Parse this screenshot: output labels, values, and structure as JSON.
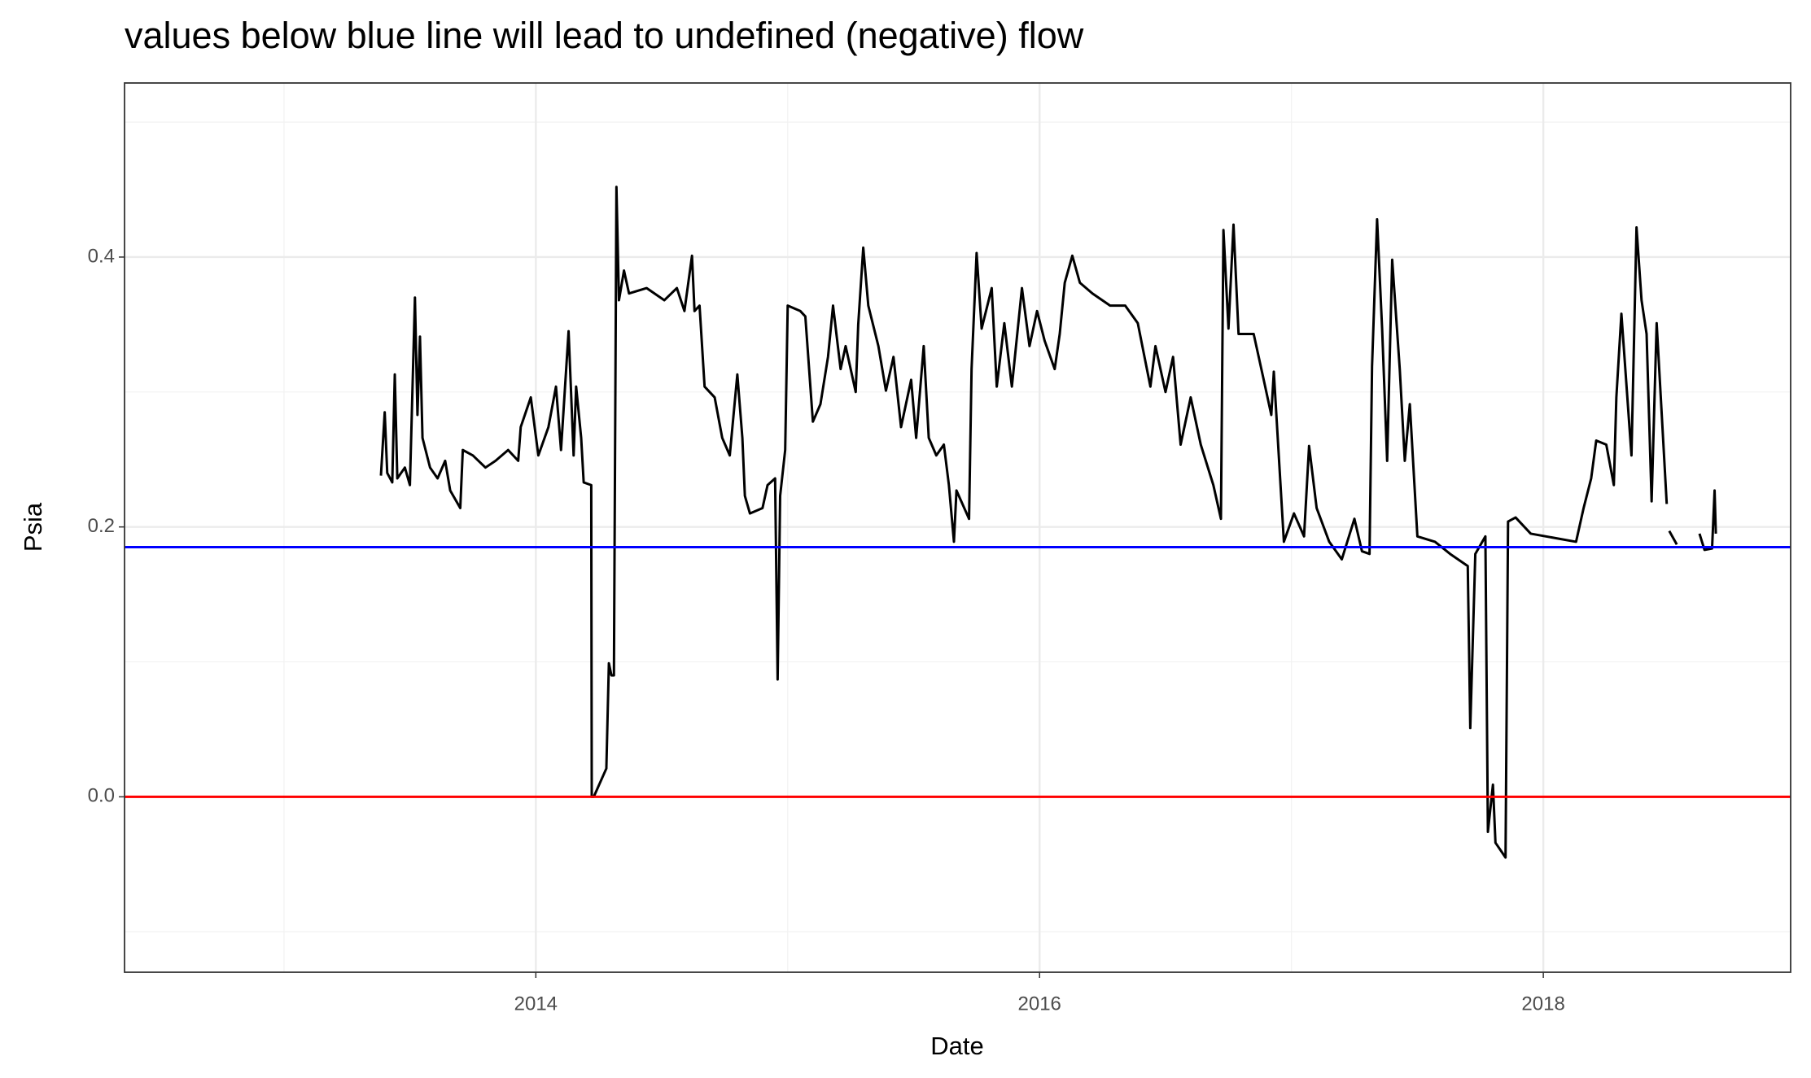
{
  "chart_data": {
    "type": "line",
    "title": "values below blue line will lead to undefined (negative) flow",
    "xlabel": "Date",
    "ylabel": "Psia",
    "xlim": [
      2012.367,
      2018.982
    ],
    "ylim": [
      -0.13,
      0.529
    ],
    "xticks": [
      2014,
      2016,
      2018
    ],
    "yticks": [
      {
        "value": 0,
        "label": "0.0"
      },
      {
        "value": 0.2,
        "label": "0.2"
      },
      {
        "value": 0.4,
        "label": "0.4"
      }
    ],
    "xminor": [
      2013,
      2015,
      2017
    ],
    "yminor": [
      -0.1,
      0.1,
      0.3,
      0.5
    ],
    "grid": true,
    "color": "#000000",
    "hlines": [
      {
        "value": 0,
        "color": "#ff0000"
      },
      {
        "value": 0.185,
        "color": "#0000ff"
      }
    ],
    "x": [
      2013.385,
      2013.4,
      2013.41,
      2013.43,
      2013.44,
      2013.45,
      2013.48,
      2013.5,
      2013.52,
      2013.53,
      2013.54,
      2013.55,
      2013.58,
      2013.61,
      2013.64,
      2013.66,
      2013.7,
      2013.71,
      2013.75,
      2013.8,
      2013.84,
      2013.89,
      2013.93,
      2013.94,
      2013.98,
      2014.01,
      2014.05,
      2014.08,
      2014.1,
      2014.13,
      2014.15,
      2014.16,
      2014.18,
      2014.19,
      2014.22,
      2014.222,
      2014.23,
      2014.28,
      2014.29,
      2014.3,
      2014.31,
      2014.32,
      2014.33,
      2014.35,
      2014.37,
      2014.44,
      2014.51,
      2014.56,
      2014.59,
      2014.62,
      2014.63,
      2014.65,
      2014.67,
      2014.71,
      2014.74,
      2014.77,
      2014.8,
      2014.82,
      2014.83,
      2014.85,
      2014.9,
      2014.92,
      2014.95,
      2014.96,
      2014.97,
      2014.99,
      2015.0,
      2015.05,
      2015.07,
      2015.1,
      2015.13,
      2015.16,
      2015.18,
      2015.21,
      2015.23,
      2015.27,
      2015.28,
      2015.3,
      2015.32,
      2015.36,
      2015.39,
      2015.42,
      2015.45,
      2015.49,
      2015.51,
      2015.54,
      2015.56,
      2015.59,
      2015.62,
      2015.64,
      2015.66,
      2015.67,
      2015.72,
      2015.73,
      2015.75,
      2015.77,
      2015.81,
      2015.83,
      2015.86,
      2015.89,
      2015.93,
      2015.96,
      2015.99,
      2016.02,
      2016.06,
      2016.08,
      2016.1,
      2016.13,
      2016.16,
      2016.21,
      2016.28,
      2016.34,
      2016.39,
      2016.44,
      2016.46,
      2016.5,
      2016.53,
      2016.56,
      2016.6,
      2016.64,
      2016.69,
      2016.72,
      2016.73,
      2016.75,
      2016.77,
      2016.79,
      2016.85,
      2016.89,
      2016.92,
      2016.93,
      2016.97,
      2017.01,
      2017.05,
      2017.07,
      2017.1,
      2017.15,
      2017.2,
      2017.25,
      2017.28,
      2017.31,
      2017.32,
      2017.34,
      2017.36,
      2017.38,
      2017.4,
      2017.43,
      2017.45,
      2017.47,
      2017.5,
      2017.57,
      2017.63,
      2017.7,
      2017.71,
      2017.73,
      2017.77,
      2017.78,
      2017.8,
      2017.81,
      2017.85,
      2017.86,
      2017.89,
      2017.95,
      2018.13,
      2018.16,
      2018.19,
      2018.21,
      2018.25,
      2018.28,
      2018.29,
      2018.31,
      2018.35,
      2018.37,
      2018.39,
      2018.41,
      2018.43,
      2018.45,
      2018.49,
      2018.495,
      2018.5,
      2018.53,
      2018.58,
      2018.62,
      2018.64,
      2018.67,
      2018.68,
      2018.685
    ],
    "values": [
      0.238,
      0.285,
      0.24,
      0.233,
      0.313,
      0.236,
      0.244,
      0.231,
      0.37,
      0.283,
      0.341,
      0.266,
      0.244,
      0.236,
      0.249,
      0.227,
      0.214,
      0.257,
      0.253,
      0.244,
      0.249,
      0.257,
      0.249,
      0.274,
      0.296,
      0.253,
      0.274,
      0.304,
      0.257,
      0.345,
      0.253,
      0.304,
      0.266,
      0.233,
      0.231,
      0.0,
      0.0,
      0.021,
      0.099,
      0.09,
      0.09,
      0.452,
      0.368,
      0.39,
      0.373,
      0.377,
      0.368,
      0.377,
      0.36,
      0.401,
      0.36,
      0.364,
      0.304,
      0.296,
      0.266,
      0.253,
      0.313,
      0.266,
      0.223,
      0.21,
      0.214,
      0.231,
      0.236,
      0.087,
      0.223,
      0.257,
      0.364,
      0.36,
      0.356,
      0.278,
      0.291,
      0.326,
      0.364,
      0.317,
      0.334,
      0.3,
      0.35,
      0.407,
      0.364,
      0.334,
      0.301,
      0.326,
      0.274,
      0.309,
      0.266,
      0.334,
      0.266,
      0.253,
      0.261,
      0.231,
      0.189,
      0.227,
      0.206,
      0.317,
      0.403,
      0.347,
      0.377,
      0.304,
      0.351,
      0.304,
      0.377,
      0.334,
      0.36,
      0.338,
      0.317,
      0.343,
      0.381,
      0.401,
      0.381,
      0.373,
      0.364,
      0.364,
      0.351,
      0.304,
      0.334,
      0.3,
      0.326,
      0.261,
      0.296,
      0.261,
      0.231,
      0.206,
      0.42,
      0.347,
      0.424,
      0.343,
      0.343,
      0.309,
      0.283,
      0.315,
      0.189,
      0.21,
      0.193,
      0.26,
      0.214,
      0.189,
      0.176,
      0.206,
      0.182,
      0.18,
      0.319,
      0.428,
      0.347,
      0.249,
      0.398,
      0.317,
      0.249,
      0.291,
      0.193,
      0.189,
      0.18,
      0.171,
      0.051,
      0.18,
      0.193,
      -0.026,
      0.009,
      -0.034,
      -0.045,
      0.204,
      0.207,
      0.195,
      0.189,
      0.214,
      0.236,
      0.264,
      0.261,
      0.231,
      0.296,
      0.358,
      0.253,
      0.422,
      0.368,
      0.343,
      0.219,
      0.351,
      0.217,
      null,
      0.197,
      0.187,
      null,
      0.195,
      0.183,
      0.184,
      0.227,
      0.195
    ]
  }
}
